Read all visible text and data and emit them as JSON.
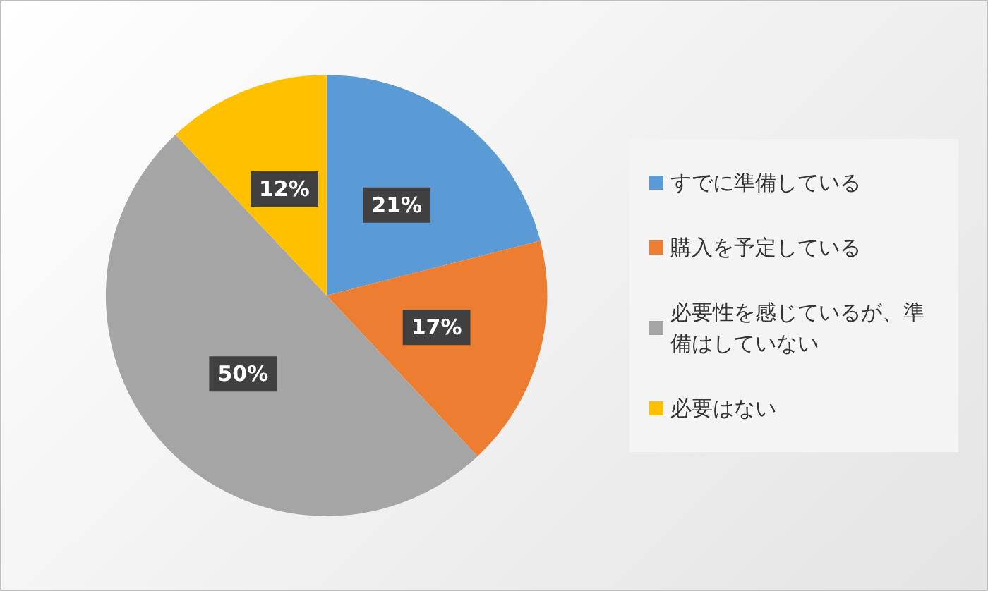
{
  "chart_data": {
    "type": "pie",
    "categories": [
      "すでに準備している",
      "購入を予定している",
      "必要性を感じているが、準備はしていない",
      "必要はない"
    ],
    "values": [
      21,
      17,
      50,
      12
    ],
    "colors": [
      "#5b9bd5",
      "#ed7d31",
      "#a5a5a5",
      "#ffc000"
    ],
    "value_labels": [
      "21%",
      "17%",
      "50%",
      "12%"
    ],
    "legend": "right"
  }
}
